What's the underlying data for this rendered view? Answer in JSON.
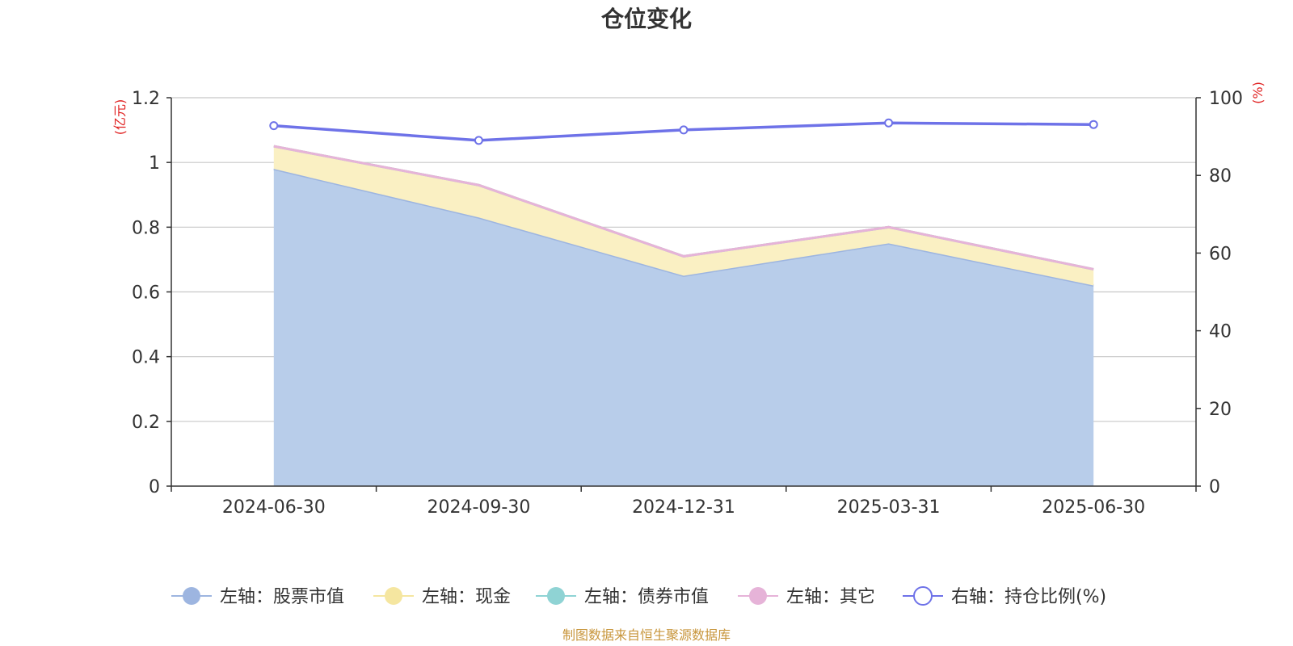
{
  "chart_data": {
    "type": "area",
    "title": "仓位变化",
    "categories": [
      "2024-06-30",
      "2024-09-30",
      "2024-12-31",
      "2025-03-31",
      "2025-06-30"
    ],
    "left_axis": {
      "unit": "(亿元)",
      "ylim": [
        0,
        1.2
      ],
      "ticks": [
        "0",
        "0.2",
        "0.4",
        "0.6",
        "0.8",
        "1",
        "1.2"
      ],
      "tick_values": [
        0,
        0.2,
        0.4,
        0.6,
        0.8,
        1.0,
        1.2
      ]
    },
    "right_axis": {
      "unit": "(%)",
      "ylim": [
        0,
        100
      ],
      "ticks": [
        "0",
        "20",
        "40",
        "60",
        "80",
        "100"
      ],
      "tick_values": [
        0,
        20,
        40,
        60,
        80,
        100
      ]
    },
    "series": [
      {
        "name": "左轴：股票市值",
        "axis": "left",
        "kind": "stacked-area",
        "color": "#9db5e0",
        "fill": "#b8cdea",
        "values": [
          0.98,
          0.83,
          0.65,
          0.75,
          0.62
        ]
      },
      {
        "name": "左轴：现金",
        "axis": "left",
        "kind": "stacked-area",
        "color": "#f5e6a0",
        "fill": "#faf0c3",
        "values": [
          0.07,
          0.1,
          0.06,
          0.05,
          0.05
        ]
      },
      {
        "name": "左轴：债券市值",
        "axis": "left",
        "kind": "stacked-area",
        "color": "#8fd3d4",
        "fill": "#b6e3e3",
        "values": [
          0,
          0,
          0,
          0,
          0
        ]
      },
      {
        "name": "左轴：其它",
        "axis": "left",
        "kind": "stacked-area",
        "color": "#e6b3d8",
        "fill": "#f0cfe6",
        "values": [
          0,
          0,
          0,
          0,
          0
        ]
      },
      {
        "name": "右轴：持仓比例(%)",
        "axis": "right",
        "kind": "line",
        "color": "#6e72e8",
        "values": [
          92.8,
          89.0,
          91.7,
          93.5,
          93.1
        ]
      }
    ],
    "grid": true,
    "legend_position": "bottom"
  },
  "footer": {
    "source": "制图数据来自恒生聚源数据库"
  }
}
